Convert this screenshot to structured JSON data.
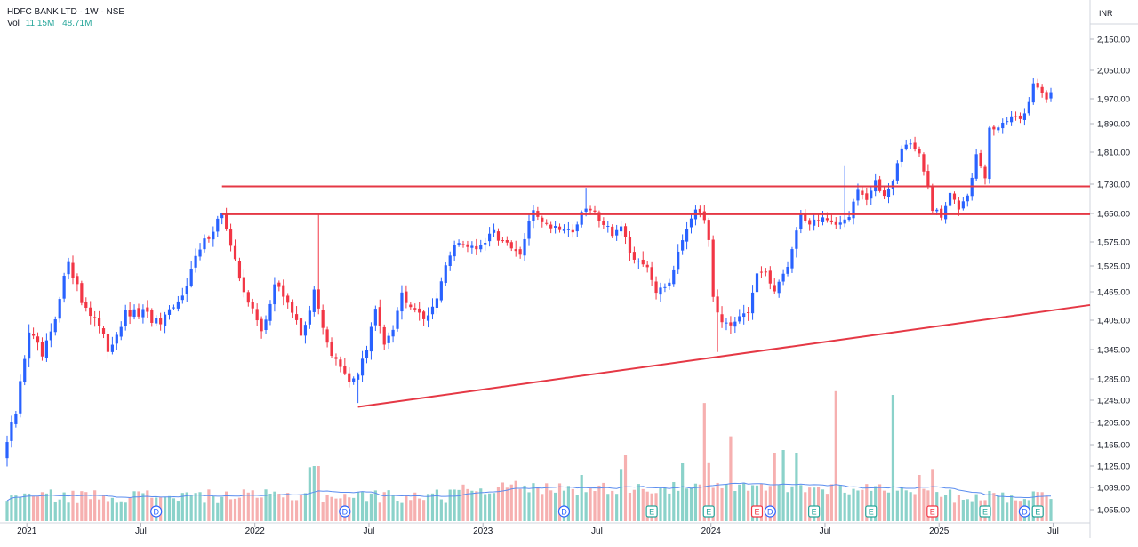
{
  "header": {
    "title": "HDFC BANK LTD · 1W · NSE",
    "vol_label": "Vol",
    "vol_value_1": "11.15M",
    "vol_value_2": "48.71M",
    "currency": "INR"
  },
  "colors": {
    "up": "#2962ff",
    "down": "#f23645",
    "vol_up": "#7ecdc4",
    "vol_down": "#f5a7a7",
    "vol_ma": "#5b8def",
    "trendline": "#e53845",
    "grid": "#f0f3fa",
    "axis": "#787b86",
    "event_dividend": "#2962ff",
    "event_earnings_green": "#26a69a",
    "event_earnings_red": "#f23645"
  },
  "chart_data": {
    "type": "candlestick",
    "title": "HDFC BANK LTD · 1W · NSE",
    "price_axis": {
      "ticks": [
        1055,
        1089,
        1125,
        1165,
        1205,
        1245,
        1285,
        1345,
        1405,
        1465,
        1525,
        1575,
        1650,
        1730,
        1810,
        1890,
        1970,
        2050,
        2150
      ],
      "tick_labels": [
        "1,055.00",
        "1,089.00",
        "1,125.00",
        "1,165.00",
        "1,205.00",
        "1,245.00",
        "1,285.00",
        "1,345.00",
        "1,405.00",
        "1,465.00",
        "1,525.00",
        "1,575.00",
        "1,650.00",
        "1,730.00",
        "1,810.00",
        "1,890.00",
        "1,970.00",
        "2,050.00",
        "2,150.00"
      ]
    },
    "time_axis": {
      "labels": [
        {
          "t": 4.5,
          "label": "2021"
        },
        {
          "t": 30.5,
          "label": "Jul"
        },
        {
          "t": 56.5,
          "label": "2022"
        },
        {
          "t": 82.5,
          "label": "Jul"
        },
        {
          "t": 108.5,
          "label": "2023"
        },
        {
          "t": 134.5,
          "label": "Jul"
        },
        {
          "t": 160.5,
          "label": "2024"
        },
        {
          "t": 186.5,
          "label": "Jul"
        },
        {
          "t": 212.5,
          "label": "2025"
        },
        {
          "t": 238.5,
          "label": "Jul"
        }
      ]
    },
    "price_anchors": [
      [
        0,
        1170
      ],
      [
        2,
        1220
      ],
      [
        5,
        1385
      ],
      [
        8,
        1330
      ],
      [
        11,
        1400
      ],
      [
        14,
        1540
      ],
      [
        17,
        1445
      ],
      [
        20,
        1410
      ],
      [
        23,
        1345
      ],
      [
        27,
        1415
      ],
      [
        31,
        1420
      ],
      [
        35,
        1395
      ],
      [
        39,
        1440
      ],
      [
        43,
        1540
      ],
      [
        47,
        1610
      ],
      [
        49,
        1655
      ],
      [
        51,
        1560
      ],
      [
        53,
        1500
      ],
      [
        55,
        1445
      ],
      [
        58,
        1380
      ],
      [
        61,
        1480
      ],
      [
        64,
        1445
      ],
      [
        67,
        1375
      ],
      [
        70,
        1460
      ],
      [
        72,
        1395
      ],
      [
        74,
        1335
      ],
      [
        76,
        1305
      ],
      [
        78,
        1275
      ],
      [
        80,
        1300
      ],
      [
        82,
        1345
      ],
      [
        84,
        1425
      ],
      [
        86,
        1365
      ],
      [
        88,
        1395
      ],
      [
        90,
        1460
      ],
      [
        93,
        1435
      ],
      [
        96,
        1405
      ],
      [
        99,
        1490
      ],
      [
        102,
        1575
      ],
      [
        105,
        1570
      ],
      [
        108,
        1560
      ],
      [
        111,
        1600
      ],
      [
        114,
        1565
      ],
      [
        117,
        1545
      ],
      [
        120,
        1660
      ],
      [
        123,
        1620
      ],
      [
        126,
        1615
      ],
      [
        129,
        1605
      ],
      [
        132,
        1665
      ],
      [
        135,
        1640
      ],
      [
        138,
        1600
      ],
      [
        140,
        1615
      ],
      [
        142,
        1540
      ],
      [
        145,
        1535
      ],
      [
        148,
        1470
      ],
      [
        151,
        1490
      ],
      [
        153,
        1560
      ],
      [
        156,
        1645
      ],
      [
        158,
        1655
      ],
      [
        159,
        1640
      ],
      [
        160,
        1590
      ],
      [
        161,
        1460
      ],
      [
        163,
        1395
      ],
      [
        165,
        1385
      ],
      [
        167,
        1410
      ],
      [
        169,
        1420
      ],
      [
        171,
        1510
      ],
      [
        173,
        1500
      ],
      [
        175,
        1475
      ],
      [
        177,
        1500
      ],
      [
        179,
        1560
      ],
      [
        181,
        1650
      ],
      [
        183,
        1625
      ],
      [
        186,
        1640
      ],
      [
        189,
        1610
      ],
      [
        192,
        1650
      ],
      [
        194,
        1720
      ],
      [
        196,
        1690
      ],
      [
        198,
        1730
      ],
      [
        200,
        1700
      ],
      [
        202,
        1745
      ],
      [
        204,
        1820
      ],
      [
        206,
        1840
      ],
      [
        208,
        1800
      ],
      [
        210,
        1720
      ],
      [
        211,
        1660
      ],
      [
        213,
        1640
      ],
      [
        215,
        1700
      ],
      [
        217,
        1670
      ],
      [
        219,
        1710
      ],
      [
        221,
        1800
      ],
      [
        222,
        1775
      ],
      [
        223,
        1745
      ],
      [
        224,
        1870
      ],
      [
        226,
        1885
      ],
      [
        228,
        1900
      ],
      [
        230,
        1905
      ],
      [
        232,
        1920
      ],
      [
        234,
        2010
      ],
      [
        236,
        1995
      ],
      [
        237,
        1975
      ],
      [
        238,
        1995
      ]
    ],
    "candle_count": 239,
    "volume_series": {
      "name": "Vol",
      "spikes": [
        {
          "t": 69,
          "value": 1123
        },
        {
          "t": 70,
          "value": 1125
        },
        {
          "t": 71,
          "value": 1125
        },
        {
          "t": 116,
          "value": 1100
        },
        {
          "t": 131,
          "value": 1110
        },
        {
          "t": 140,
          "value": 1120
        },
        {
          "t": 141,
          "value": 1145
        },
        {
          "t": 154,
          "value": 1130
        },
        {
          "t": 159,
          "value": 1240
        },
        {
          "t": 160,
          "value": 1132
        },
        {
          "t": 165,
          "value": 1180
        },
        {
          "t": 175,
          "value": 1150
        },
        {
          "t": 177,
          "value": 1155
        },
        {
          "t": 180,
          "value": 1150
        },
        {
          "t": 189,
          "value": 1262
        },
        {
          "t": 202,
          "value": 1255
        },
        {
          "t": 208,
          "value": 1110
        },
        {
          "t": 211,
          "value": 1120
        }
      ]
    },
    "horizontal_lines": [
      1648,
      1724
    ],
    "trendline": {
      "t1": 80,
      "v1": 1233,
      "t2": 240,
      "v2": 1437
    },
    "event_markers": [
      {
        "t": 34,
        "label": "D",
        "kind": "dividend"
      },
      {
        "t": 77,
        "label": "D",
        "kind": "dividend"
      },
      {
        "t": 127,
        "label": "D",
        "kind": "dividend"
      },
      {
        "t": 147,
        "label": "E",
        "kind": "earnings_green"
      },
      {
        "t": 160,
        "label": "E",
        "kind": "earnings_green"
      },
      {
        "t": 171,
        "label": "E",
        "kind": "earnings_red"
      },
      {
        "t": 174,
        "label": "D",
        "kind": "dividend"
      },
      {
        "t": 184,
        "label": "E",
        "kind": "earnings_green"
      },
      {
        "t": 197,
        "label": "E",
        "kind": "earnings_green"
      },
      {
        "t": 211,
        "label": "E",
        "kind": "earnings_red"
      },
      {
        "t": 223,
        "label": "E",
        "kind": "earnings_green"
      },
      {
        "t": 232,
        "label": "D",
        "kind": "dividend"
      },
      {
        "t": 235,
        "label": "E",
        "kind": "earnings_green"
      }
    ]
  }
}
